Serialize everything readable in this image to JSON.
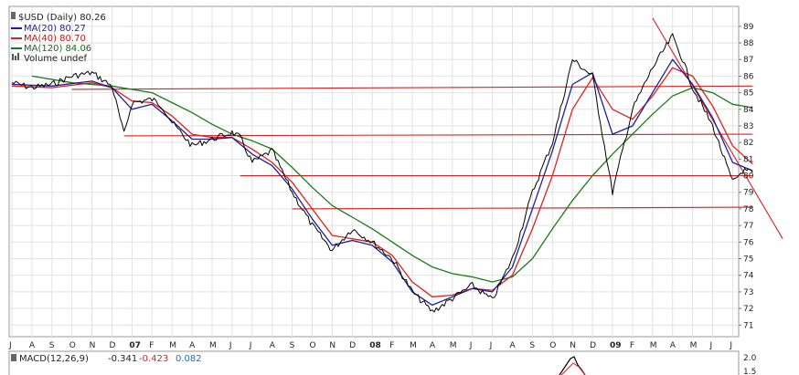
{
  "legend": {
    "title": "$USD (Daily) 80.26",
    "ma20": "MA(20) 80.27",
    "ma40": "MA(40) 80.70",
    "ma120": "MA(120) 84.06",
    "volume": "Volume undef"
  },
  "macd": {
    "label": "MACD(12,26,9)",
    "values": [
      "-0.341",
      "-0.423",
      "0.082"
    ],
    "y_ticks": [
      "2.0",
      "1.5"
    ]
  },
  "colors": {
    "price": "#000000",
    "ma20": "#1f1f99",
    "ma40": "#e02020",
    "ma120": "#1a7a1a",
    "macd_values": [
      "#000000",
      "#e02020",
      "#1f6fd0"
    ],
    "support_line": "#e02020",
    "grid": "#e2e2e2"
  },
  "chart_data": {
    "type": "line",
    "title": "$USD (Daily) 80.26",
    "ylim": [
      70.3,
      90.2
    ],
    "y_ticks": [
      71,
      72,
      73,
      74,
      75,
      76,
      77,
      78,
      79,
      80,
      81,
      82,
      83,
      84,
      85,
      86,
      87,
      88,
      89
    ],
    "x_ticks": [
      "J",
      "A",
      "S",
      "O",
      "N",
      "D",
      "07",
      "F",
      "M",
      "A",
      "M",
      "J",
      "J",
      "A",
      "S",
      "O",
      "N",
      "D",
      "08",
      "F",
      "M",
      "A",
      "M",
      "J",
      "J",
      "A",
      "S",
      "O",
      "N",
      "D",
      "09",
      "F",
      "M",
      "A",
      "M",
      "J",
      "J"
    ],
    "x_tick_years": [
      "07",
      "08",
      "09"
    ],
    "grid": true,
    "legend_position": "top-left",
    "series": [
      {
        "name": "$USD (Daily) 80.26",
        "color": "#000000",
        "points": [
          [
            0,
            85.6
          ],
          [
            1,
            85.3
          ],
          [
            2,
            85.5
          ],
          [
            3,
            86.0
          ],
          [
            4,
            86.2
          ],
          [
            5,
            85.4
          ],
          [
            5.6,
            82.5
          ],
          [
            6,
            84.4
          ],
          [
            7,
            84.6
          ],
          [
            7.5,
            84.2
          ],
          [
            8,
            83.2
          ],
          [
            9,
            81.8
          ],
          [
            10,
            82.2
          ],
          [
            11,
            82.6
          ],
          [
            11.4,
            82.3
          ],
          [
            12,
            80.8
          ],
          [
            13,
            81.5
          ],
          [
            14,
            79.0
          ],
          [
            15,
            77.0
          ],
          [
            16,
            75.5
          ],
          [
            17,
            76.8
          ],
          [
            18,
            76.0
          ],
          [
            19,
            75.0
          ],
          [
            20,
            73.0
          ],
          [
            21,
            71.8
          ],
          [
            22,
            72.6
          ],
          [
            23,
            73.4
          ],
          [
            24,
            72.5
          ],
          [
            25,
            75.0
          ],
          [
            26,
            79.0
          ],
          [
            27,
            82.0
          ],
          [
            28,
            87.0
          ],
          [
            29,
            86.0
          ],
          [
            30,
            79.0
          ],
          [
            30.3,
            80.5
          ],
          [
            31,
            84.0
          ],
          [
            32,
            86.5
          ],
          [
            33,
            88.4
          ],
          [
            33.5,
            87.0
          ],
          [
            34,
            85.3
          ],
          [
            35,
            83.0
          ],
          [
            36,
            79.6
          ],
          [
            36.5,
            80.3
          ],
          [
            37,
            80.2
          ]
        ]
      },
      {
        "name": "MA(20) 80.27",
        "color": "#1f1f99",
        "points": [
          [
            0,
            85.5
          ],
          [
            2,
            85.4
          ],
          [
            4,
            85.7
          ],
          [
            5,
            85.3
          ],
          [
            6,
            84.0
          ],
          [
            7,
            84.3
          ],
          [
            8,
            83.3
          ],
          [
            9,
            82.2
          ],
          [
            10,
            82.2
          ],
          [
            11,
            82.3
          ],
          [
            12,
            81.3
          ],
          [
            13,
            80.6
          ],
          [
            14,
            79.2
          ],
          [
            15,
            77.4
          ],
          [
            16,
            75.8
          ],
          [
            17,
            76.1
          ],
          [
            18,
            75.8
          ],
          [
            19,
            74.8
          ],
          [
            20,
            73.0
          ],
          [
            21,
            72.2
          ],
          [
            22,
            72.7
          ],
          [
            23,
            73.2
          ],
          [
            24,
            73.0
          ],
          [
            25,
            74.5
          ],
          [
            26,
            78.0
          ],
          [
            27,
            81.5
          ],
          [
            28,
            85.5
          ],
          [
            29,
            86.2
          ],
          [
            30,
            82.5
          ],
          [
            31,
            83.0
          ],
          [
            32,
            85.0
          ],
          [
            33,
            87.0
          ],
          [
            34,
            85.5
          ],
          [
            35,
            83.5
          ],
          [
            36,
            80.8
          ],
          [
            37,
            80.3
          ]
        ]
      },
      {
        "name": "MA(40) 80.70",
        "color": "#e02020",
        "points": [
          [
            0,
            85.4
          ],
          [
            2,
            85.3
          ],
          [
            4,
            85.6
          ],
          [
            5,
            85.3
          ],
          [
            6,
            84.5
          ],
          [
            7,
            84.4
          ],
          [
            8,
            83.6
          ],
          [
            9,
            82.5
          ],
          [
            10,
            82.3
          ],
          [
            11,
            82.3
          ],
          [
            12,
            81.6
          ],
          [
            13,
            80.8
          ],
          [
            14,
            79.6
          ],
          [
            15,
            78.0
          ],
          [
            16,
            76.4
          ],
          [
            17,
            76.2
          ],
          [
            18,
            76.0
          ],
          [
            19,
            75.2
          ],
          [
            20,
            73.6
          ],
          [
            21,
            72.7
          ],
          [
            22,
            72.8
          ],
          [
            23,
            73.2
          ],
          [
            24,
            73.1
          ],
          [
            25,
            74.0
          ],
          [
            26,
            76.8
          ],
          [
            27,
            80.0
          ],
          [
            28,
            84.0
          ],
          [
            29,
            85.9
          ],
          [
            30,
            84.0
          ],
          [
            31,
            83.4
          ],
          [
            32,
            84.8
          ],
          [
            33,
            86.5
          ],
          [
            34,
            86.0
          ],
          [
            35,
            84.2
          ],
          [
            36,
            81.8
          ],
          [
            37,
            80.7
          ]
        ]
      },
      {
        "name": "MA(120) 84.06",
        "color": "#1a7a1a",
        "points": [
          [
            1,
            86.0
          ],
          [
            3,
            85.6
          ],
          [
            5,
            85.4
          ],
          [
            7,
            85.0
          ],
          [
            8,
            84.4
          ],
          [
            9,
            83.8
          ],
          [
            10,
            83.1
          ],
          [
            11,
            82.5
          ],
          [
            12,
            82.1
          ],
          [
            13,
            81.6
          ],
          [
            14,
            80.5
          ],
          [
            15,
            79.3
          ],
          [
            16,
            78.2
          ],
          [
            17,
            77.5
          ],
          [
            18,
            76.8
          ],
          [
            19,
            76.0
          ],
          [
            20,
            75.2
          ],
          [
            21,
            74.5
          ],
          [
            22,
            74.1
          ],
          [
            23,
            73.9
          ],
          [
            24,
            73.6
          ],
          [
            25,
            73.9
          ],
          [
            26,
            75.0
          ],
          [
            27,
            76.8
          ],
          [
            28,
            78.5
          ],
          [
            29,
            80.0
          ],
          [
            30,
            81.3
          ],
          [
            31,
            82.5
          ],
          [
            32,
            83.7
          ],
          [
            33,
            84.8
          ],
          [
            34,
            85.3
          ],
          [
            35,
            85.0
          ],
          [
            36,
            84.3
          ],
          [
            37,
            84.1
          ]
        ]
      }
    ],
    "trendlines": [
      {
        "from": [
          3.0,
          85.2
        ],
        "to": [
          37.0,
          85.4
        ]
      },
      {
        "from": [
          5.6,
          82.4
        ],
        "to": [
          37.0,
          82.5
        ]
      },
      {
        "from": [
          11.4,
          80.0
        ],
        "to": [
          37.0,
          80.0
        ]
      },
      {
        "from": [
          14.0,
          78.0
        ],
        "to": [
          37.0,
          78.1
        ]
      },
      {
        "from": [
          32.0,
          89.5
        ],
        "to": [
          38.5,
          76.2
        ]
      }
    ]
  }
}
